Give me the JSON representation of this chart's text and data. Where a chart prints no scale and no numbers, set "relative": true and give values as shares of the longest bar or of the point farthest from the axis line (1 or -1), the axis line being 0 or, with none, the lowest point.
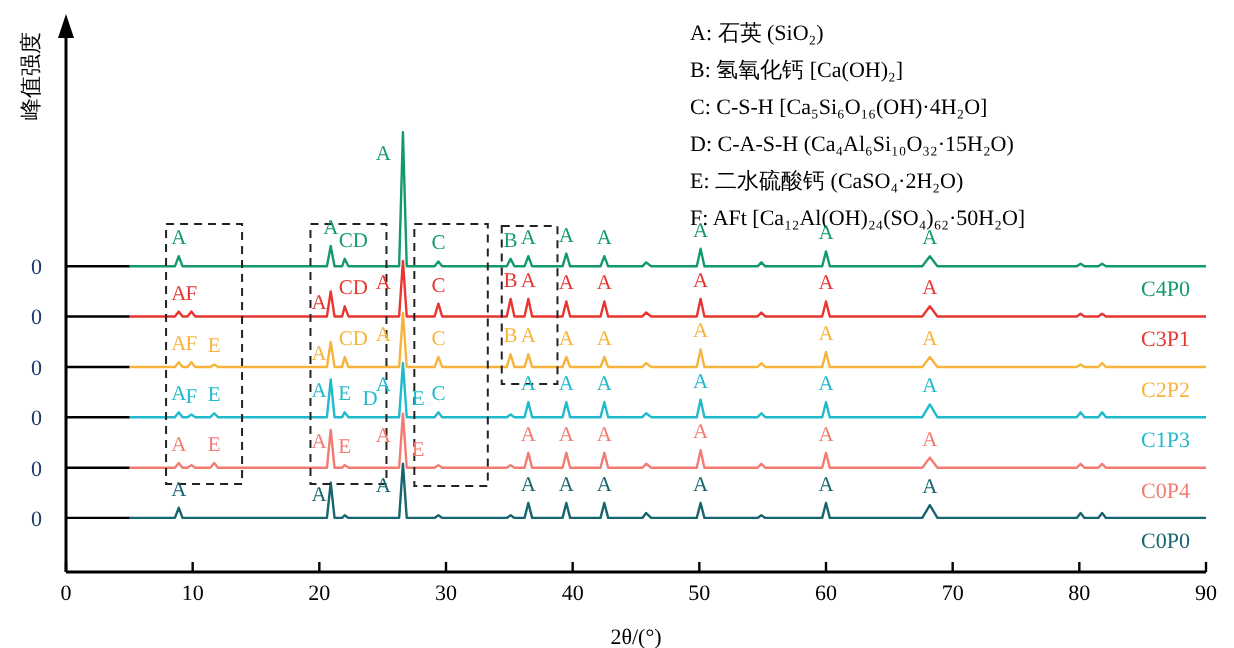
{
  "chart_data": {
    "type": "line",
    "xlabel": "2θ/(°)",
    "ylabel": "峰值强度",
    "relative": true,
    "xlim": [
      0,
      90
    ],
    "xticks": [
      0,
      10,
      20,
      30,
      40,
      50,
      60,
      70,
      80,
      90
    ],
    "x": [
      5,
      8.6,
      8.9,
      9.2,
      9.6,
      9.9,
      10.2,
      11.4,
      11.7,
      12.0,
      18.0,
      20.6,
      20.9,
      21.2,
      21.8,
      22.0,
      22.3,
      24.0,
      26.3,
      26.6,
      26.9,
      27.8,
      29.1,
      29.4,
      29.7,
      34.8,
      35.1,
      35.4,
      36.2,
      36.5,
      36.8,
      39.2,
      39.5,
      39.8,
      42.2,
      42.5,
      42.8,
      45.5,
      45.8,
      46.2,
      49.8,
      50.1,
      50.4,
      54.6,
      54.9,
      55.2,
      59.7,
      60.0,
      60.3,
      67.6,
      68.2,
      68.8,
      79.8,
      80.1,
      80.4,
      81.5,
      81.8,
      82.1,
      90
    ],
    "marker": "none",
    "line_style": "solid",
    "series": [
      {
        "name": "C4P0",
        "color": "#139a6a",
        "values": [
          0.695,
          0.695,
          0.718,
          0.695,
          0.695,
          0.695,
          0.695,
          0.695,
          0.695,
          0.695,
          0.695,
          0.695,
          0.741,
          0.695,
          0.695,
          0.712,
          0.695,
          0.695,
          0.695,
          1,
          0.695,
          0.695,
          0.695,
          0.706,
          0.695,
          0.695,
          0.712,
          0.695,
          0.695,
          0.718,
          0.695,
          0.695,
          0.724,
          0.695,
          0.695,
          0.718,
          0.695,
          0.695,
          0.704,
          0.695,
          0.695,
          0.735,
          0.695,
          0.695,
          0.704,
          0.695,
          0.695,
          0.729,
          0.695,
          0.695,
          0.718,
          0.695,
          0.695,
          0.701,
          0.695,
          0.695,
          0.701,
          0.695,
          0.695
        ]
      },
      {
        "name": "C3P1",
        "color": "#e8352f",
        "values": [
          0.581,
          0.581,
          0.592,
          0.581,
          0.581,
          0.592,
          0.581,
          0.581,
          0.581,
          0.581,
          0.581,
          0.581,
          0.638,
          0.581,
          0.581,
          0.604,
          0.581,
          0.581,
          0.581,
          0.707,
          0.581,
          0.581,
          0.581,
          0.61,
          0.581,
          0.581,
          0.621,
          0.581,
          0.581,
          0.621,
          0.581,
          0.581,
          0.615,
          0.581,
          0.581,
          0.615,
          0.581,
          0.581,
          0.59,
          0.581,
          0.581,
          0.621,
          0.581,
          0.581,
          0.59,
          0.581,
          0.581,
          0.615,
          0.581,
          0.581,
          0.604,
          0.581,
          0.581,
          0.587,
          0.581,
          0.581,
          0.587,
          0.581,
          0.581
        ]
      },
      {
        "name": "C2P2",
        "color": "#f7b43c",
        "values": [
          0.466,
          0.466,
          0.477,
          0.466,
          0.466,
          0.477,
          0.466,
          0.466,
          0.472,
          0.466,
          0.466,
          0.466,
          0.523,
          0.466,
          0.466,
          0.489,
          0.466,
          0.466,
          0.466,
          0.589,
          0.466,
          0.466,
          0.466,
          0.489,
          0.466,
          0.466,
          0.495,
          0.466,
          0.466,
          0.495,
          0.466,
          0.466,
          0.489,
          0.466,
          0.466,
          0.489,
          0.466,
          0.466,
          0.475,
          0.466,
          0.466,
          0.506,
          0.466,
          0.466,
          0.475,
          0.466,
          0.466,
          0.5,
          0.466,
          0.466,
          0.489,
          0.466,
          0.466,
          0.472,
          0.466,
          0.466,
          0.475,
          0.466,
          0.466
        ]
      },
      {
        "name": "C1P3",
        "color": "#1fbacb",
        "values": [
          0.352,
          0.352,
          0.363,
          0.352,
          0.352,
          0.358,
          0.352,
          0.352,
          0.361,
          0.352,
          0.352,
          0.352,
          0.438,
          0.352,
          0.352,
          0.363,
          0.352,
          0.352,
          0.352,
          0.475,
          0.352,
          0.352,
          0.352,
          0.363,
          0.352,
          0.352,
          0.358,
          0.352,
          0.352,
          0.386,
          0.352,
          0.352,
          0.386,
          0.352,
          0.352,
          0.386,
          0.352,
          0.352,
          0.361,
          0.352,
          0.352,
          0.392,
          0.352,
          0.352,
          0.361,
          0.352,
          0.352,
          0.386,
          0.352,
          0.352,
          0.381,
          0.352,
          0.352,
          0.363,
          0.352,
          0.352,
          0.363,
          0.352,
          0.352
        ]
      },
      {
        "name": "C0P4",
        "color": "#f27b72",
        "values": [
          0.237,
          0.237,
          0.248,
          0.237,
          0.237,
          0.243,
          0.237,
          0.237,
          0.248,
          0.237,
          0.237,
          0.237,
          0.323,
          0.237,
          0.237,
          0.243,
          0.237,
          0.237,
          0.237,
          0.36,
          0.237,
          0.237,
          0.237,
          0.243,
          0.237,
          0.237,
          0.243,
          0.237,
          0.237,
          0.271,
          0.237,
          0.237,
          0.271,
          0.237,
          0.237,
          0.271,
          0.237,
          0.237,
          0.246,
          0.237,
          0.237,
          0.277,
          0.237,
          0.237,
          0.246,
          0.237,
          0.237,
          0.271,
          0.237,
          0.237,
          0.26,
          0.237,
          0.237,
          0.246,
          0.237,
          0.237,
          0.246,
          0.237,
          0.237
        ]
      },
      {
        "name": "C0P0",
        "color": "#17656f",
        "values": [
          0.123,
          0.123,
          0.146,
          0.123,
          0.123,
          0.123,
          0.123,
          0.123,
          0.123,
          0.123,
          0.123,
          0.123,
          0.203,
          0.123,
          0.123,
          0.129,
          0.123,
          0.123,
          0.123,
          0.246,
          0.123,
          0.123,
          0.123,
          0.129,
          0.123,
          0.123,
          0.129,
          0.123,
          0.123,
          0.157,
          0.123,
          0.123,
          0.157,
          0.123,
          0.123,
          0.157,
          0.123,
          0.123,
          0.134,
          0.123,
          0.123,
          0.157,
          0.123,
          0.123,
          0.129,
          0.123,
          0.123,
          0.157,
          0.123,
          0.123,
          0.152,
          0.123,
          0.123,
          0.134,
          0.123,
          0.123,
          0.134,
          0.123,
          0.123
        ]
      }
    ],
    "annotations": [
      "A: 石英 (SiO₂)",
      "B: 氢氧化钙 [Ca(OH)₂]",
      "C: C-S-H [Ca₅Si₆O₁₆(OH)·4H₂O]",
      "D: C-A-S-H (Ca₄Al₆Si₁₀O₃₂·15H₂O)",
      "E: 二水硫酸钙 (CaSO₄·2H₂O)",
      "F: AFt [Ca₁₂Al(OH)₂₄(SO₄)₆₂·50H₂O]",
      "0",
      "0",
      "0",
      "0",
      "0",
      "0",
      {
        "text": "A",
        "x": 8.9,
        "y": 0.718
      },
      {
        "text": "A",
        "x": 20.9,
        "y": 0.741
      },
      {
        "text": "CD",
        "x": 22.0,
        "y": 0.712
      },
      {
        "text": "A",
        "x": 26.6,
        "y": 1
      },
      {
        "text": "C",
        "x": 29.4,
        "y": 0.706
      },
      {
        "text": "B",
        "x": 35.1,
        "y": 0.712
      },
      {
        "text": "A",
        "x": 36.5,
        "y": 0.718
      },
      {
        "text": "A",
        "x": 39.5,
        "y": 0.724
      },
      {
        "text": "A",
        "x": 42.5,
        "y": 0.718
      },
      {
        "text": "A",
        "x": 50.1,
        "y": 0.735
      },
      {
        "text": "A",
        "x": 60.0,
        "y": 0.729
      },
      {
        "text": "A",
        "x": 68.2,
        "y": 0.718
      },
      {
        "text": "A",
        "x": 8.9,
        "y": 0.592
      },
      {
        "text": "F",
        "x": 9.9,
        "y": 0.592
      },
      {
        "text": "A",
        "x": 20.9,
        "y": 0.638
      },
      {
        "text": "CD",
        "x": 22.0,
        "y": 0.604
      },
      {
        "text": "A",
        "x": 26.6,
        "y": 0.707
      },
      {
        "text": "C",
        "x": 29.4,
        "y": 0.61
      },
      {
        "text": "B",
        "x": 35.1,
        "y": 0.621
      },
      {
        "text": "A",
        "x": 36.5,
        "y": 0.621
      },
      {
        "text": "A",
        "x": 39.5,
        "y": 0.615
      },
      {
        "text": "A",
        "x": 42.5,
        "y": 0.615
      },
      {
        "text": "A",
        "x": 50.1,
        "y": 0.621
      },
      {
        "text": "A",
        "x": 60.0,
        "y": 0.615
      },
      {
        "text": "A",
        "x": 68.2,
        "y": 0.604
      },
      {
        "text": "A",
        "x": 8.9,
        "y": 0.477
      },
      {
        "text": "F",
        "x": 9.9,
        "y": 0.477
      },
      {
        "text": "E",
        "x": 11.7,
        "y": 0.472
      },
      {
        "text": "A",
        "x": 20.9,
        "y": 0.523
      },
      {
        "text": "CD",
        "x": 22.0,
        "y": 0.489
      },
      {
        "text": "A",
        "x": 26.6,
        "y": 0.589
      },
      {
        "text": "C",
        "x": 29.4,
        "y": 0.489
      },
      {
        "text": "B",
        "x": 35.1,
        "y": 0.495
      },
      {
        "text": "A",
        "x": 36.5,
        "y": 0.495
      },
      {
        "text": "A",
        "x": 39.5,
        "y": 0.489
      },
      {
        "text": "A",
        "x": 42.5,
        "y": 0.489
      },
      {
        "text": "A",
        "x": 50.1,
        "y": 0.506
      },
      {
        "text": "A",
        "x": 60.0,
        "y": 0.5
      },
      {
        "text": "A",
        "x": 68.2,
        "y": 0.489
      },
      {
        "text": "A",
        "x": 8.9,
        "y": 0.363
      },
      {
        "text": "F",
        "x": 9.9,
        "y": 0.358
      },
      {
        "text": "E",
        "x": 11.7,
        "y": 0.361
      },
      {
        "text": "A",
        "x": 20.9,
        "y": 0.438
      },
      {
        "text": "E",
        "x": 22.0,
        "y": 0.363
      },
      {
        "text": "D",
        "x": 24.0,
        "y": 0.352
      },
      {
        "text": "A",
        "x": 26.6,
        "y": 0.475
      },
      {
        "text": "E",
        "x": 27.8,
        "y": 0.352
      },
      {
        "text": "C",
        "x": 29.4,
        "y": 0.363
      },
      {
        "text": "A",
        "x": 36.5,
        "y": 0.386
      },
      {
        "text": "A",
        "x": 39.5,
        "y": 0.386
      },
      {
        "text": "A",
        "x": 42.5,
        "y": 0.386
      },
      {
        "text": "A",
        "x": 50.1,
        "y": 0.392
      },
      {
        "text": "A",
        "x": 60.0,
        "y": 0.386
      },
      {
        "text": "A",
        "x": 68.2,
        "y": 0.381
      },
      {
        "text": "A",
        "x": 8.9,
        "y": 0.248
      },
      {
        "text": "E",
        "x": 11.7,
        "y": 0.248
      },
      {
        "text": "A",
        "x": 20.9,
        "y": 0.323
      },
      {
        "text": "E",
        "x": 22.0,
        "y": 0.243
      },
      {
        "text": "A",
        "x": 26.6,
        "y": 0.36
      },
      {
        "text": "E",
        "x": 27.8,
        "y": 0.237
      },
      {
        "text": "A",
        "x": 36.5,
        "y": 0.271
      },
      {
        "text": "A",
        "x": 39.5,
        "y": 0.271
      },
      {
        "text": "A",
        "x": 42.5,
        "y": 0.271
      },
      {
        "text": "A",
        "x": 50.1,
        "y": 0.277
      },
      {
        "text": "A",
        "x": 60.0,
        "y": 0.271
      },
      {
        "text": "A",
        "x": 68.2,
        "y": 0.26
      },
      {
        "text": "A",
        "x": 8.9,
        "y": 0.146
      },
      {
        "text": "A",
        "x": 20.9,
        "y": 0.203
      },
      {
        "text": "A",
        "x": 26.6,
        "y": 0.246
      },
      {
        "text": "A",
        "x": 36.5,
        "y": 0.157
      },
      {
        "text": "A",
        "x": 39.5,
        "y": 0.157
      },
      {
        "text": "A",
        "x": 42.5,
        "y": 0.157
      },
      {
        "text": "A",
        "x": 50.1,
        "y": 0.157
      },
      {
        "text": "A",
        "x": 60.0,
        "y": 0.157
      },
      {
        "text": "A",
        "x": 68.2,
        "y": 0.152
      }
    ]
  }
}
